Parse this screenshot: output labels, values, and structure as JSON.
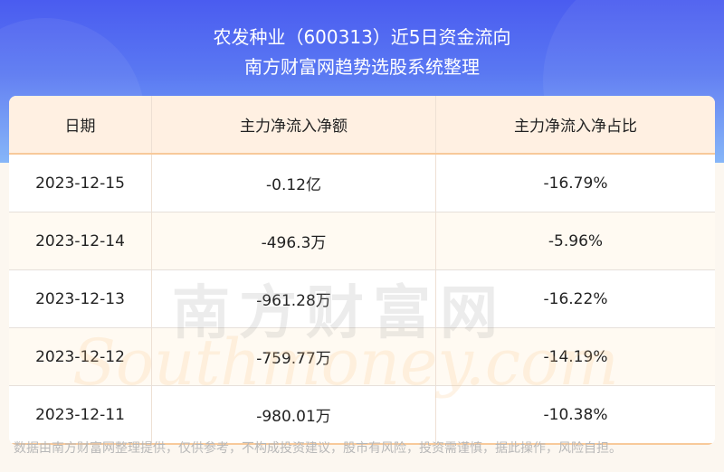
{
  "header": {
    "title": "农发种业（600313）近5日资金流向",
    "subtitle": "南方财富网趋势选股系统整理"
  },
  "table": {
    "columns": [
      "日期",
      "主力净流入净额",
      "主力净流入净占比"
    ],
    "rows": [
      [
        "2023-12-15",
        "-0.12亿",
        "-16.79%"
      ],
      [
        "2023-12-14",
        "-496.3万",
        "-5.96%"
      ],
      [
        "2023-12-13",
        "-961.28万",
        "-16.22%"
      ],
      [
        "2023-12-12",
        "-759.77万",
        "-14.19%"
      ],
      [
        "2023-12-11",
        "-980.01万",
        "-10.38%"
      ]
    ]
  },
  "watermark": {
    "cn": "南方财富网",
    "en": "Southmoney.com"
  },
  "disclaimer": "数据由南方财富网整理提供，仅供参考，不构成投资建议，股市有风险，投资需谨慎，据此操作，风险自担。"
}
